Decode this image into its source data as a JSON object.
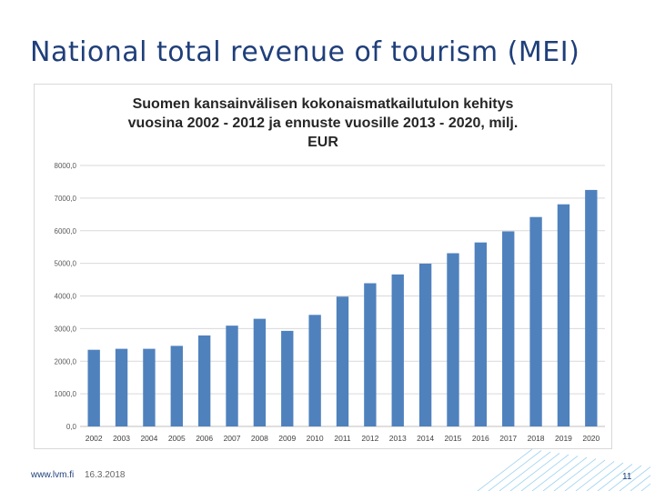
{
  "slide": {
    "title": "National total revenue of tourism (MEI)",
    "footer_url": "www.lvm.fi",
    "footer_date": "16.3.2018",
    "page_number": "11"
  },
  "colors": {
    "bar": "#4f81bd",
    "title": "#1f3f7a",
    "grid": "#d9d9d9",
    "decoration": "#7fc4ec"
  },
  "chart_data": {
    "type": "bar",
    "title_lines": [
      "Suomen kansainvälisen kokonaismatkailutulon kehitys",
      "vuosina 2002 - 2012 ja ennuste vuosille 2013 - 2020, milj.",
      "EUR"
    ],
    "xlabel": "",
    "ylabel": "",
    "ylim": [
      0,
      8000
    ],
    "yticks": [
      "0,0",
      "1000,0",
      "2000,0",
      "3000,0",
      "4000,0",
      "5000,0",
      "6000,0",
      "7000,0",
      "8000,0"
    ],
    "grid": true,
    "legend": "none",
    "categories": [
      "2002",
      "2003",
      "2004",
      "2005",
      "2006",
      "2007",
      "2008",
      "2009",
      "2010",
      "2011",
      "2012",
      "2013",
      "2014",
      "2015",
      "2016",
      "2017",
      "2018",
      "2019",
      "2020"
    ],
    "values": [
      2350,
      2380,
      2380,
      2470,
      2790,
      3090,
      3300,
      2930,
      3420,
      3980,
      4390,
      4660,
      4990,
      5310,
      5640,
      5980,
      6420,
      6810,
      7250
    ]
  }
}
